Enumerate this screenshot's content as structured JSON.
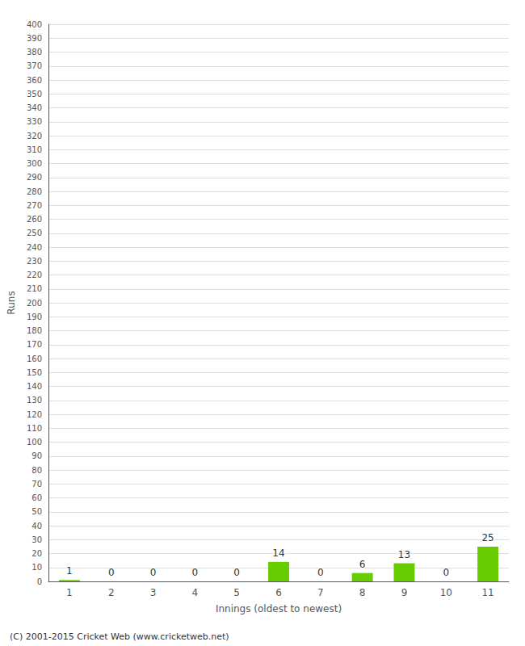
{
  "chart_data": {
    "type": "bar",
    "xlabel": "Innings (oldest to newest)",
    "ylabel": "Runs",
    "categories": [
      1,
      2,
      3,
      4,
      5,
      6,
      7,
      8,
      9,
      10,
      11
    ],
    "values": [
      1,
      0,
      0,
      0,
      0,
      14,
      0,
      6,
      13,
      0,
      25
    ],
    "color": "#66cc00",
    "ylim": [
      0,
      400
    ],
    "yticks": [
      0,
      10,
      20,
      30,
      40,
      50,
      60,
      70,
      80,
      90,
      100,
      110,
      120,
      130,
      140,
      150,
      160,
      170,
      180,
      190,
      200,
      210,
      220,
      230,
      240,
      250,
      260,
      270,
      280,
      290,
      300,
      310,
      320,
      330,
      340,
      350,
      360,
      370,
      380,
      390,
      400
    ],
    "grid": true,
    "data_labels": true,
    "annotations": [
      "(C) 2001-2015 Cricket Web (www.cricketweb.net)"
    ]
  }
}
